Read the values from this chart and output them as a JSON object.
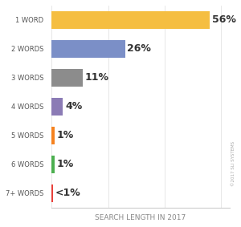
{
  "categories": [
    "1 WORD",
    "2 WORDS",
    "3 WORDS",
    "4 WORDS",
    "5 WORDS",
    "6 WORDS",
    "7+ WORDS"
  ],
  "values": [
    56,
    26,
    11,
    4,
    1,
    1,
    0.5
  ],
  "labels": [
    "56%",
    "26%",
    "11%",
    "4%",
    "1%",
    "1%",
    "<1%"
  ],
  "bar_colors": [
    "#F5BE41",
    "#7B8FC7",
    "#8C8C8C",
    "#8B7BB5",
    "#F5821F",
    "#4CAF50",
    "#E8403A"
  ],
  "background_color": "#FFFFFF",
  "xlabel": "SEARCH LENGTH IN 2017",
  "watermark": "©2017 SLI SYSTEMS",
  "xlabel_fontsize": 6.5,
  "label_fontsize": 9,
  "category_fontsize": 6,
  "xlim": [
    0,
    63
  ],
  "bar_height": 0.6
}
